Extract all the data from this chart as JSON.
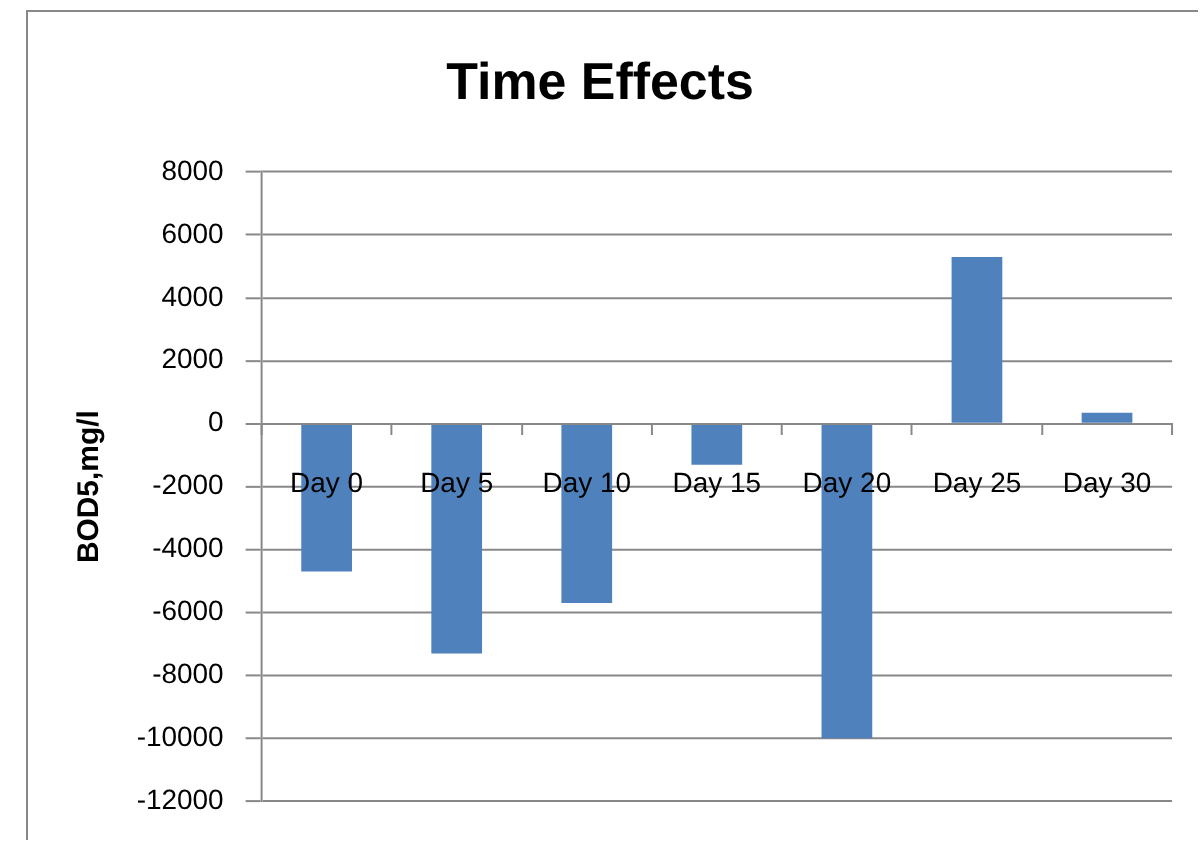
{
  "chart_data": {
    "type": "bar",
    "title": "Time Effects",
    "ylabel": "BOD5,mg/l",
    "categories": [
      "Day 0",
      "Day 5",
      "Day 10",
      "Day 15",
      "Day 20",
      "Day 25",
      "Day 30"
    ],
    "values": [
      -4700,
      -7300,
      -5700,
      -1300,
      -10000,
      5300,
      350
    ],
    "color": "#4f81bd",
    "ylim": [
      -12000,
      8000
    ],
    "yticks": [
      -12000,
      -10000,
      -8000,
      -6000,
      -4000,
      -2000,
      0,
      2000,
      4000,
      6000,
      8000
    ],
    "grid": "y"
  }
}
